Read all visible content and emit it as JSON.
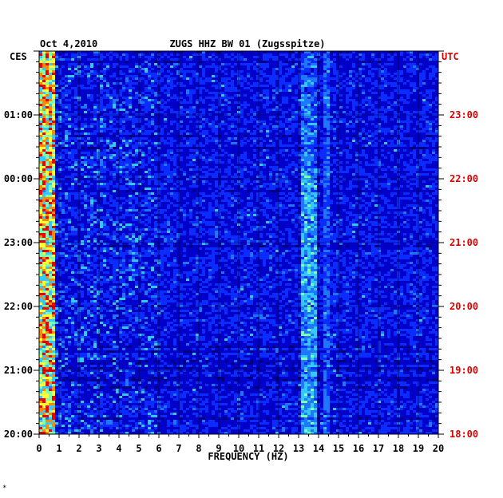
{
  "chart_data": {
    "type": "heatmap",
    "header_date": "Oct 4,2010",
    "title": "ZUGS HHZ BW 01 (Zugsspitze)",
    "left_axis_label": "CES",
    "right_axis_label": "UTC",
    "xlabel": "FREQUENCY (HZ)",
    "x_ticks": [
      "0",
      "1",
      "2",
      "3",
      "4",
      "5",
      "6",
      "7",
      "8",
      "9",
      "10",
      "11",
      "12",
      "13",
      "14",
      "15",
      "16",
      "17",
      "18",
      "19",
      "20"
    ],
    "xlim": [
      0,
      20
    ],
    "y_ticks_left": [
      "01:00",
      "00:00",
      "23:00",
      "22:00",
      "21:00",
      "20:00"
    ],
    "y_ticks_right": [
      "23:00",
      "22:00",
      "21:00",
      "20:00",
      "19:00",
      "18:00"
    ],
    "hours_from_bottom": [
      5,
      4,
      3,
      2,
      1,
      0
    ],
    "y_range_hours": 6,
    "colormap": [
      "#00007a",
      "#0000c8",
      "#0a2cff",
      "#1e78ff",
      "#33c8ff",
      "#7dffb0",
      "#ffff33",
      "#ff8800",
      "#ee0000"
    ],
    "features": [
      {
        "label": "microseism band",
        "freq_range_hz": [
          0.0,
          0.8
        ],
        "level": "high"
      },
      {
        "label": "narrowband line",
        "freq_range_hz": [
          13.2,
          13.9
        ],
        "level": "moderate"
      },
      {
        "label": "narrowband line",
        "freq_range_hz": [
          14.3,
          14.6
        ],
        "level": "weak"
      },
      {
        "label": "broadband burst",
        "freq_range_hz": [
          0.8,
          6.0
        ],
        "level": "moderate"
      }
    ],
    "grid": true
  },
  "footer_mark": "*"
}
